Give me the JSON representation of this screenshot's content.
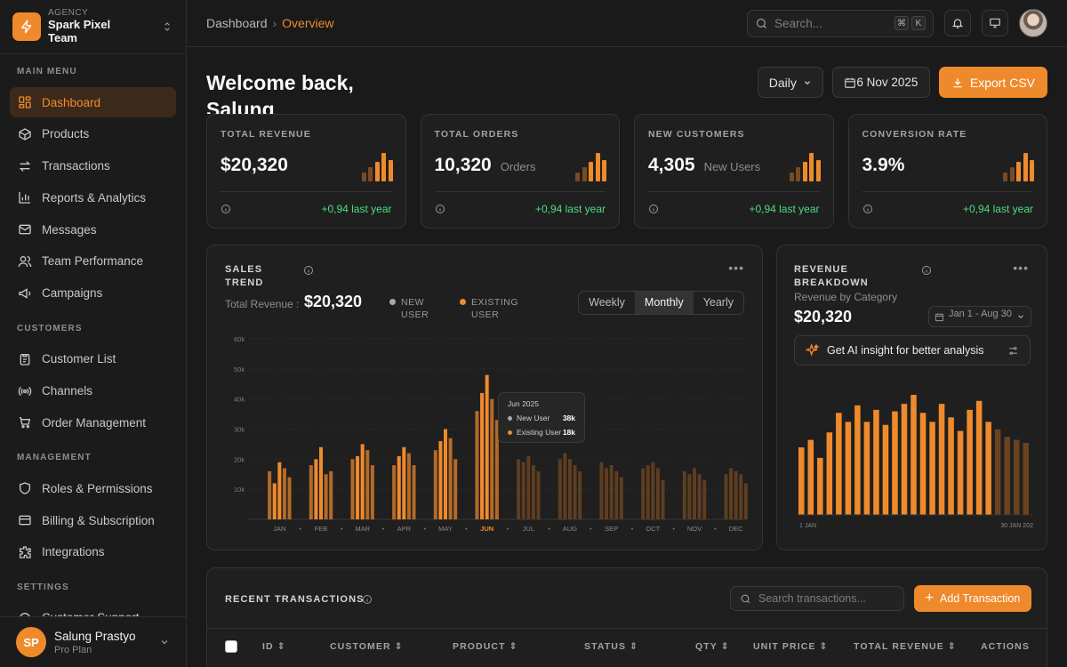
{
  "team": {
    "kicker": "AGENCY",
    "name": "Spark Pixel Team"
  },
  "nav": {
    "main_title": "MAIN MENU",
    "main": [
      "Dashboard",
      "Products",
      "Transactions",
      "Reports & Analytics",
      "Messages",
      "Team Performance",
      "Campaigns"
    ],
    "customers_title": "CUSTOMERS",
    "customers": [
      "Customer List",
      "Channels",
      "Order Management"
    ],
    "management_title": "MANAGEMENT",
    "management": [
      "Roles & Permissions",
      "Billing & Subscription",
      "Integrations"
    ],
    "settings_title": "SETTINGS",
    "settings": [
      "Customer Support"
    ]
  },
  "user": {
    "initials": "SP",
    "name": "Salung Prastyo",
    "plan": "Pro Plan"
  },
  "topbar": {
    "crumb_root": "Dashboard",
    "crumb_sep": "›",
    "crumb_current": "Overview",
    "search_placeholder": "Search...",
    "kbd1": "⌘",
    "kbd2": "K"
  },
  "header": {
    "welcome": "Welcome back, Salung",
    "period": "Daily",
    "date": "6 Nov 2025",
    "export": "Export CSV"
  },
  "cards": [
    {
      "title": "TOTAL REVENUE",
      "value": "$20,320",
      "suffix": "",
      "delta": "+0,94 last year"
    },
    {
      "title": "TOTAL ORDERS",
      "value": "10,320",
      "suffix": "Orders",
      "delta": "+0,94 last year"
    },
    {
      "title": "NEW CUSTOMERS",
      "value": "4,305",
      "suffix": "New Users",
      "delta": "+0,94 last year"
    },
    {
      "title": "CONVERSION RATE",
      "value": "3.9%",
      "suffix": "",
      "delta": "+0,94 last year"
    }
  ],
  "sales": {
    "title": "SALES TREND",
    "total_label": "Total Revenue :",
    "total_value": "$20,320",
    "legend_new": "NEW USER",
    "legend_existing": "EXISTING USER",
    "tabs": [
      "Weekly",
      "Monthly",
      "Yearly"
    ],
    "active_tab": "Monthly",
    "tooltip": {
      "month": "Jun 2025",
      "new_label": "New User",
      "new_value": "38k",
      "existing_label": "Existing User",
      "existing_value": "18k"
    }
  },
  "revenue": {
    "title": "REVENUE BREAKDOWN",
    "subtitle": "Revenue by Category",
    "value": "$20,320",
    "range": "Jan 1 - Aug 30",
    "ai": "Get AI insight for better analysis",
    "x_start": "1 JAN",
    "x_end": "30 JAN 202"
  },
  "transactions": {
    "title": "RECENT TRANSACTIONS",
    "search_placeholder": "Search transactions...",
    "add": "Add Transaction",
    "columns": [
      "ID",
      "CUSTOMER",
      "PRODUCT",
      "STATUS",
      "QTY",
      "UNIT PRICE",
      "TOTAL REVENUE",
      "ACTIONS"
    ]
  },
  "colors": {
    "accent": "#ef8a2c",
    "accent_dim": "#7a4a22",
    "positive": "#4ade80"
  },
  "chart_data": [
    {
      "type": "bar",
      "title": "SALES TREND",
      "categories": [
        "JAN",
        "FEB",
        "MAR",
        "APR",
        "MAY",
        "JUN",
        "JUL",
        "AUG",
        "SEP",
        "OCT",
        "NOV",
        "DEC"
      ],
      "highlight": "JUN",
      "yticks": [
        "10k",
        "20k",
        "30k",
        "40k",
        "50k",
        "60k"
      ],
      "ylim": [
        0,
        60000
      ],
      "series": [
        {
          "name": "NEW USER",
          "values": [
            [
              16000,
              12000,
              19000,
              17000,
              14000
            ],
            [
              18000,
              20000,
              24000,
              15000,
              16000
            ],
            [
              20000,
              21000,
              25000,
              23000,
              18000
            ],
            [
              18000,
              21000,
              24000,
              22000,
              18000
            ],
            [
              23000,
              26000,
              30000,
              27000,
              20000
            ],
            [
              36000,
              42000,
              48000,
              40000,
              33000
            ],
            [
              20000,
              19000,
              21000,
              18000,
              16000
            ],
            [
              20000,
              22000,
              20000,
              18000,
              16000
            ],
            [
              19000,
              17000,
              18000,
              16000,
              14000
            ],
            [
              17000,
              18000,
              19000,
              17000,
              13000
            ],
            [
              16000,
              15000,
              17000,
              15000,
              13000
            ],
            [
              15000,
              17000,
              16000,
              15000,
              12000
            ]
          ]
        },
        {
          "name": "EXISTING USER",
          "values": [
            [
              16000,
              12000,
              19000,
              17000,
              14000
            ],
            [
              18000,
              20000,
              24000,
              15000,
              16000
            ],
            [
              20000,
              21000,
              25000,
              23000,
              18000
            ],
            [
              18000,
              21000,
              24000,
              22000,
              18000
            ],
            [
              23000,
              26000,
              30000,
              27000,
              20000
            ],
            [
              36000,
              42000,
              48000,
              40000,
              33000
            ],
            [
              20000,
              19000,
              21000,
              18000,
              16000
            ],
            [
              20000,
              22000,
              20000,
              18000,
              16000
            ],
            [
              19000,
              17000,
              18000,
              16000,
              14000
            ],
            [
              17000,
              18000,
              19000,
              17000,
              13000
            ],
            [
              16000,
              15000,
              17000,
              15000,
              13000
            ],
            [
              15000,
              17000,
              16000,
              15000,
              12000
            ]
          ]
        }
      ]
    },
    {
      "type": "bar",
      "title": "REVENUE BREAKDOWN",
      "x_labels": [
        "1 JAN",
        "30 JAN 202"
      ],
      "values": [
        0.45,
        0.5,
        0.38,
        0.55,
        0.68,
        0.62,
        0.73,
        0.62,
        0.7,
        0.6,
        0.69,
        0.74,
        0.8,
        0.68,
        0.62,
        0.74,
        0.65,
        0.56,
        0.7,
        0.76,
        0.62,
        0.57,
        0.52,
        0.5,
        0.48
      ],
      "faded_from_index": 21
    }
  ]
}
